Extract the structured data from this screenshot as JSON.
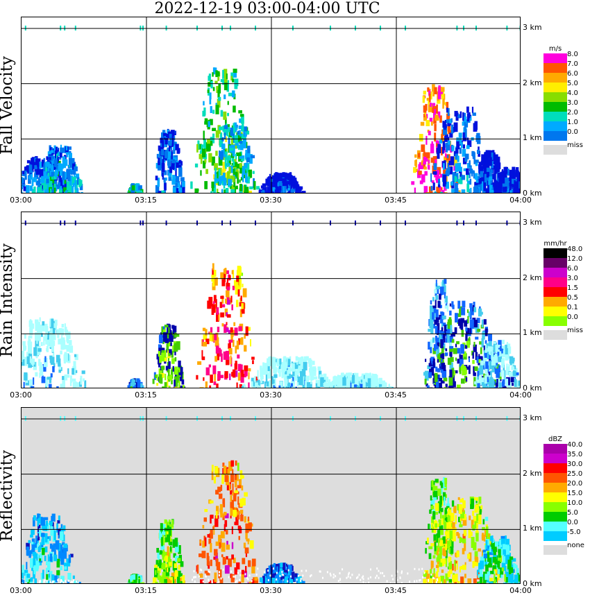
{
  "title": "2022-12-19   03:00-04:00 UTC",
  "colors": {
    "fallvel": [
      "#0011dd",
      "#0077ee",
      "#00aaff",
      "#00ddbb",
      "#00bb00",
      "#88dd00",
      "#ffee00",
      "#ffaa00",
      "#ff5500",
      "#ff00dd"
    ],
    "rain": [
      "#aaffff",
      "#44ccee",
      "#1166ff",
      "#0000aa",
      "#44cc00",
      "#88ff00",
      "#ffff00",
      "#ffaa00",
      "#ff0000",
      "#ff0088",
      "#cc00cc",
      "#660066",
      "#000000"
    ],
    "refl": [
      "#1111bb",
      "#0088ff",
      "#00ccff",
      "#55ffff",
      "#00cc00",
      "#88ff00",
      "#ffff00",
      "#ffaa00",
      "#ff5500",
      "#ff0000",
      "#cc00cc",
      "#aa00aa"
    ],
    "miss": "#dddddd"
  },
  "chart_data": [
    {
      "type": "heatmap",
      "name": "Fall Velocity",
      "unit": "m/s",
      "legend_labels": [
        "8.0",
        "7.0",
        "6.0",
        "5.0",
        "4.0",
        "3.0",
        "2.0",
        "1.0",
        "0.0"
      ],
      "legend_extra": "miss",
      "x_ticks": [
        "03:00",
        "03:15",
        "03:30",
        "03:45",
        "04:00"
      ],
      "y_ticks": [
        "3 km",
        "2 km",
        "1 km",
        "0 km"
      ],
      "ylim": [
        0,
        3.2
      ],
      "background": "white",
      "cells": [
        {
          "t": 2.5,
          "h": 0.8,
          "w": 4,
          "hh": 0.7,
          "c": 1
        },
        {
          "t": 4.5,
          "h": 0.5,
          "w": 3,
          "hh": 0.9,
          "c": 2
        },
        {
          "t": 13.5,
          "h": 0.4,
          "w": 1,
          "hh": 0.2,
          "c": 3
        },
        {
          "t": 17.5,
          "h": 0.8,
          "w": 2,
          "hh": 1.2,
          "c": 1
        },
        {
          "t": 24,
          "h": 1.2,
          "w": 4,
          "hh": 2.3,
          "c": 4
        },
        {
          "t": 25.5,
          "h": 0.6,
          "w": 3,
          "hh": 1.3,
          "c": 3
        },
        {
          "t": 31,
          "h": 0.2,
          "w": 3,
          "hh": 0.4,
          "c": 0
        },
        {
          "t": 49.5,
          "h": 0.8,
          "w": 3,
          "hh": 2.0,
          "c": 8
        },
        {
          "t": 52.5,
          "h": 0.7,
          "w": 4,
          "hh": 1.6,
          "c": 1
        },
        {
          "t": 56,
          "h": 0.5,
          "w": 2,
          "hh": 0.8,
          "c": 0
        },
        {
          "t": 58.5,
          "h": 0.3,
          "w": 2,
          "hh": 0.5,
          "c": 0
        }
      ]
    },
    {
      "type": "heatmap",
      "name": "Rain Intensity",
      "unit": "mm/hr",
      "legend_labels": [
        "48.0",
        "12.0",
        "6.0",
        "3.0",
        "1.5",
        "0.5",
        "0.1",
        "0.0"
      ],
      "legend_extra": "miss",
      "x_ticks": [
        "03:00",
        "03:15",
        "03:30",
        "03:45",
        "04:00"
      ],
      "y_ticks": [
        "3 km",
        "2 km",
        "1 km",
        "0 km"
      ],
      "ylim": [
        0,
        3.2
      ],
      "background": "white",
      "cells": [
        {
          "t": 3,
          "h": 0.6,
          "w": 5,
          "hh": 1.3,
          "c": 0
        },
        {
          "t": 13.5,
          "h": 0.4,
          "w": 1,
          "hh": 0.2,
          "c": 2
        },
        {
          "t": 17.5,
          "h": 0.8,
          "w": 2,
          "hh": 1.2,
          "c": 4
        },
        {
          "t": 24.5,
          "h": 0.9,
          "w": 4,
          "hh": 2.3,
          "c": 8
        },
        {
          "t": 32,
          "h": 0.2,
          "w": 6,
          "hh": 0.6,
          "c": 0
        },
        {
          "t": 40,
          "h": 0.1,
          "w": 5,
          "hh": 0.3,
          "c": 0
        },
        {
          "t": 50,
          "h": 0.8,
          "w": 2,
          "hh": 2.0,
          "c": 2
        },
        {
          "t": 53,
          "h": 0.6,
          "w": 5,
          "hh": 1.6,
          "c": 3
        },
        {
          "t": 57,
          "h": 0.4,
          "w": 3,
          "hh": 0.9,
          "c": 1
        }
      ]
    },
    {
      "type": "heatmap",
      "name": "Reflectivity",
      "unit": "dBZ",
      "legend_labels": [
        "40.0",
        "35.0",
        "30.0",
        "25.0",
        "20.0",
        "15.0",
        "10.0",
        "5.0",
        "0.0",
        "-5.0"
      ],
      "legend_extra": "none",
      "x_ticks": [
        "03:00",
        "03:15",
        "03:30",
        "03:45",
        "04:00"
      ],
      "y_ticks": [
        "3 km",
        "2 km",
        "1 km",
        "0 km"
      ],
      "ylim": [
        0,
        3.2
      ],
      "background": "gray",
      "cells": [
        {
          "t": 3,
          "h": 0.7,
          "w": 4,
          "hh": 1.3,
          "c": 2
        },
        {
          "t": 13.5,
          "h": 0.4,
          "w": 1,
          "hh": 0.2,
          "c": 4
        },
        {
          "t": 17.5,
          "h": 0.8,
          "w": 2,
          "hh": 1.2,
          "c": 5
        },
        {
          "t": 24.5,
          "h": 0.9,
          "w": 4,
          "hh": 2.3,
          "c": 8
        },
        {
          "t": 31,
          "h": 0.2,
          "w": 3,
          "hh": 0.4,
          "c": 1
        },
        {
          "t": 50,
          "h": 0.8,
          "w": 2,
          "hh": 2.0,
          "c": 5
        },
        {
          "t": 53,
          "h": 0.6,
          "w": 5,
          "hh": 1.6,
          "c": 6
        },
        {
          "t": 57,
          "h": 0.4,
          "w": 3,
          "hh": 0.9,
          "c": 3
        }
      ]
    }
  ]
}
